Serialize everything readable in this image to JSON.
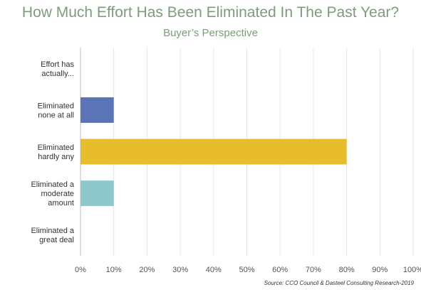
{
  "chart_data": {
    "type": "bar",
    "orientation": "horizontal",
    "title": "How Much Effort Has Been Eliminated In The Past Year?",
    "subtitle": "Buyer’s Perspective",
    "categories": [
      [
        "Effort has",
        "actually..."
      ],
      [
        "Eliminated",
        "none at all"
      ],
      [
        "Eliminated",
        "hardly any"
      ],
      [
        "Eliminated a",
        "moderate",
        "amount"
      ],
      [
        "Eliminated a",
        "great deal"
      ]
    ],
    "values": [
      0,
      10,
      80,
      10,
      0
    ],
    "bar_colors": [
      "#5b74b8",
      "#5b74b8",
      "#e8bd2c",
      "#8ec7cc",
      "#8ec7cc"
    ],
    "xlim": [
      0,
      100
    ],
    "x_ticks": [
      "0%",
      "10%",
      "20%",
      "30%",
      "40%",
      "50%",
      "60%",
      "70%",
      "80%",
      "90%",
      "100%"
    ],
    "grid": true,
    "legend": "none",
    "xlabel": "",
    "ylabel": ""
  },
  "footer": {
    "source": "Source: CCO Council & Dasteel Consulting Research-2019"
  }
}
